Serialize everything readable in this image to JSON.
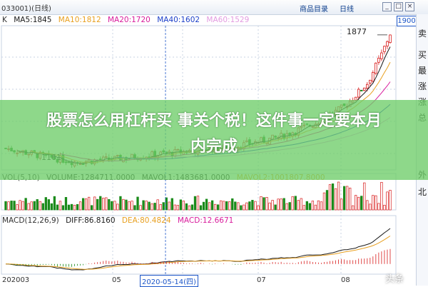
{
  "header": {
    "code": "033001)(日线)",
    "menu": [
      "商品目录",
      "日线"
    ],
    "window_buttons": [
      "_",
      "□",
      "×"
    ],
    "price_box": "1900"
  },
  "sidebar": {
    "labels": [
      "卖",
      "买",
      "最",
      "涨",
      "涨",
      "总",
      "外",
      "北"
    ]
  },
  "ma_legend": {
    "prefix": "K",
    "items": [
      {
        "label": "MA5:1845",
        "color": "#1a1a1a"
      },
      {
        "label": "MA10:1812",
        "color": "#e8a020"
      },
      {
        "label": "MA20:1720",
        "color": "#d81b9c"
      },
      {
        "label": "MA40:1602",
        "color": "#1c3fc8"
      },
      {
        "label": "MA60:1529",
        "color": "#e39be0"
      }
    ]
  },
  "vol_legend": {
    "items": [
      {
        "label": "VOL(5,10)",
        "color": "#333333"
      },
      {
        "label": "VOLUME:1284711.0000",
        "color": "#1a1a1a"
      },
      {
        "label": "MAVOL1:1483681.0000",
        "color": "#1a1a1a"
      },
      {
        "label": "MAVOL2:1001807.8000",
        "color": "#e8a020"
      }
    ]
  },
  "macd_legend": {
    "items": [
      {
        "label": "MACD(12,26,9)",
        "color": "#333333"
      },
      {
        "label": "DIFF:86.8160",
        "color": "#1a1a1a"
      },
      {
        "label": "DEA:80.4824",
        "color": "#e8a020"
      },
      {
        "label": "MACD:12.6671",
        "color": "#d81b9c"
      }
    ]
  },
  "banner": {
    "line1": "股票怎么用杠杆买 事关个税！这件事一定要本月",
    "line2": "内完成"
  },
  "annotations": {
    "high": "1877",
    "low": "1161"
  },
  "xaxis": {
    "labels": [
      "202003",
      "05",
      "07",
      "08"
    ],
    "cursor_date": "2020-05-14(四)"
  },
  "watermark": "头条",
  "colors": {
    "up": "#d81b1b",
    "down": "#1a8a1a",
    "grid": "#c9d3e3"
  },
  "chart_data": {
    "type": "candlestick",
    "price_range": [
      1120,
      1920
    ],
    "high_label": 1877,
    "low_label": 1161,
    "start_price": 1240,
    "moving_averages": [
      {
        "name": "MA5",
        "last": 1845
      },
      {
        "name": "MA10",
        "last": 1812
      },
      {
        "name": "MA20",
        "last": 1720
      },
      {
        "name": "MA40",
        "last": 1602
      },
      {
        "name": "MA60",
        "last": 1529
      }
    ],
    "volume": {
      "last": 1284711,
      "mavol1": 1483681,
      "mavol2": 1001807.8
    },
    "macd": {
      "diff": 86.816,
      "dea": 80.4824,
      "macd": 12.6671
    }
  }
}
